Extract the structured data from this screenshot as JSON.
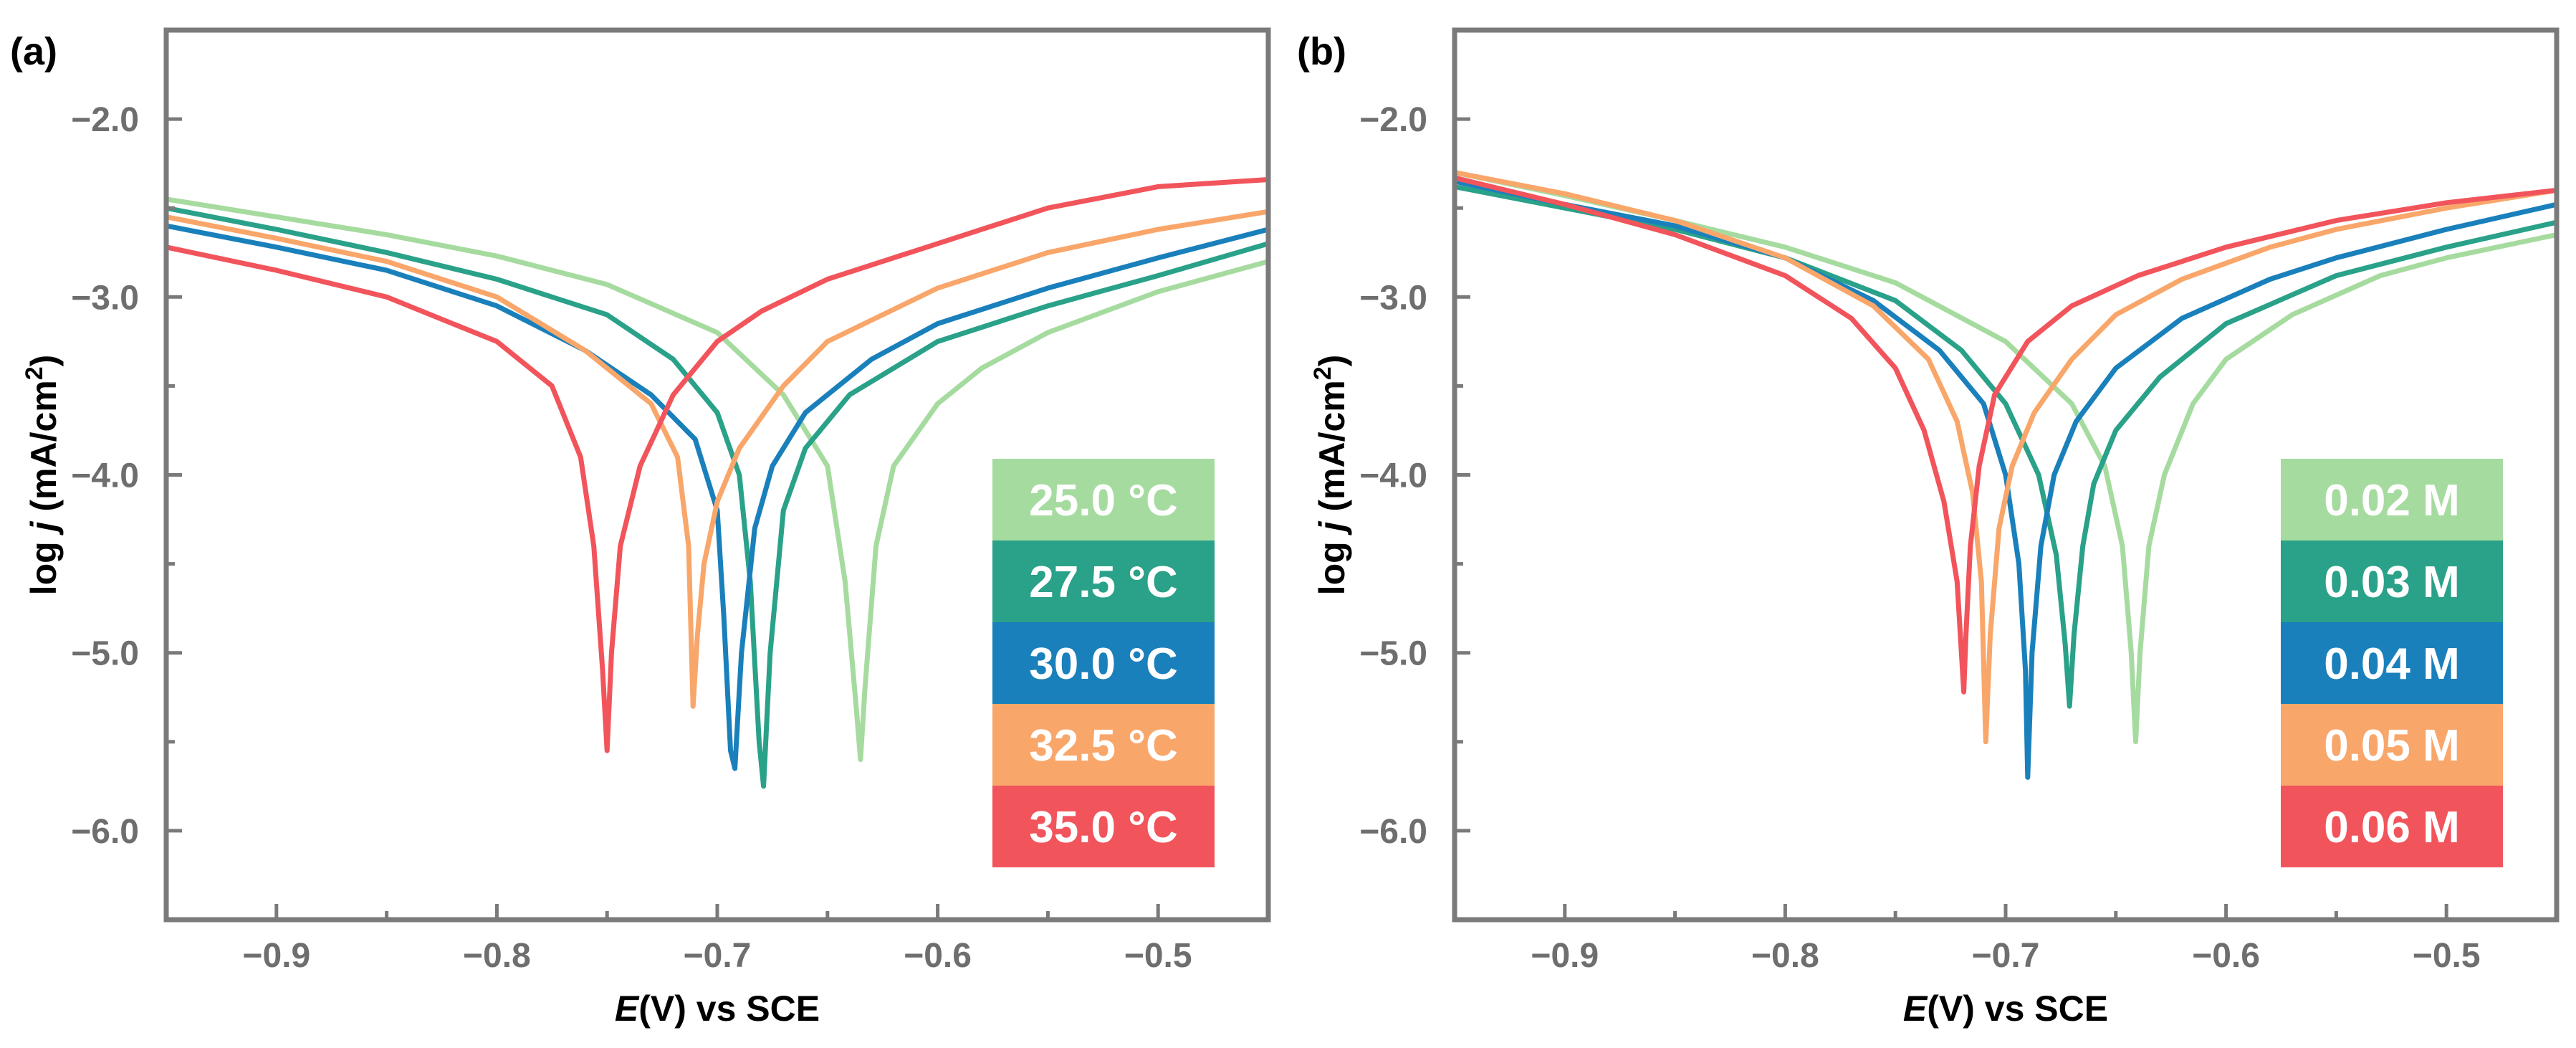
{
  "chart_data": [
    {
      "type": "line",
      "panel_label": "(a)",
      "xlabel": {
        "italic": "E",
        "rest": "(V) vs SCE"
      },
      "ylabel": {
        "prefix": "log ",
        "italic": "j",
        "rest": " (mA/cm",
        "sup": "2",
        "end": ")"
      },
      "xlim": [
        -0.95,
        -0.45
      ],
      "ylim": [
        -6.5,
        -1.5
      ],
      "xticks": [
        {
          "v": -0.9,
          "label": "−0.9"
        },
        {
          "v": -0.8,
          "label": "−0.8"
        },
        {
          "v": -0.7,
          "label": "−0.7"
        },
        {
          "v": -0.6,
          "label": "−0.6"
        },
        {
          "v": -0.5,
          "label": "−0.5"
        }
      ],
      "yticks": [
        {
          "v": -2.0,
          "label": "−2.0"
        },
        {
          "v": -3.0,
          "label": "−3.0"
        },
        {
          "v": -4.0,
          "label": "−4.0"
        },
        {
          "v": -5.0,
          "label": "−5.0"
        },
        {
          "v": -6.0,
          "label": "−6.0"
        }
      ],
      "legend_position": "bottom-right",
      "series": [
        {
          "name": "25.0 °C",
          "color": "#a6dba0",
          "x": [
            -0.95,
            -0.9,
            -0.85,
            -0.8,
            -0.75,
            -0.7,
            -0.67,
            -0.65,
            -0.642,
            -0.637,
            -0.635,
            -0.633,
            -0.628,
            -0.62,
            -0.6,
            -0.58,
            -0.55,
            -0.5,
            -0.45
          ],
          "y": [
            -2.45,
            -2.55,
            -2.65,
            -2.77,
            -2.93,
            -3.2,
            -3.55,
            -3.95,
            -4.6,
            -5.3,
            -5.6,
            -5.2,
            -4.4,
            -3.95,
            -3.6,
            -3.4,
            -3.2,
            -2.97,
            -2.8
          ]
        },
        {
          "name": "27.5 °C",
          "color": "#2aa189",
          "x": [
            -0.95,
            -0.9,
            -0.85,
            -0.8,
            -0.75,
            -0.72,
            -0.7,
            -0.69,
            -0.685,
            -0.681,
            -0.679,
            -0.676,
            -0.67,
            -0.66,
            -0.64,
            -0.6,
            -0.55,
            -0.5,
            -0.45
          ],
          "y": [
            -2.5,
            -2.62,
            -2.75,
            -2.9,
            -3.1,
            -3.35,
            -3.65,
            -4.0,
            -4.6,
            -5.5,
            -5.75,
            -5.0,
            -4.2,
            -3.85,
            -3.55,
            -3.25,
            -3.05,
            -2.88,
            -2.7
          ]
        },
        {
          "name": "30.0 °C",
          "color": "#1a80bb",
          "x": [
            -0.95,
            -0.9,
            -0.85,
            -0.8,
            -0.76,
            -0.73,
            -0.71,
            -0.7,
            -0.697,
            -0.694,
            -0.692,
            -0.689,
            -0.683,
            -0.675,
            -0.66,
            -0.63,
            -0.6,
            -0.55,
            -0.5,
            -0.45
          ],
          "y": [
            -2.6,
            -2.72,
            -2.85,
            -3.05,
            -3.3,
            -3.55,
            -3.8,
            -4.2,
            -4.8,
            -5.55,
            -5.65,
            -5.0,
            -4.3,
            -3.95,
            -3.65,
            -3.35,
            -3.15,
            -2.95,
            -2.78,
            -2.62
          ]
        },
        {
          "name": "32.5 °C",
          "color": "#f9a66a",
          "x": [
            -0.95,
            -0.9,
            -0.85,
            -0.8,
            -0.76,
            -0.73,
            -0.718,
            -0.713,
            -0.711,
            -0.709,
            -0.706,
            -0.7,
            -0.69,
            -0.67,
            -0.65,
            -0.6,
            -0.55,
            -0.5,
            -0.45
          ],
          "y": [
            -2.55,
            -2.67,
            -2.8,
            -3.0,
            -3.3,
            -3.6,
            -3.9,
            -4.4,
            -5.3,
            -4.9,
            -4.5,
            -4.15,
            -3.85,
            -3.5,
            -3.25,
            -2.95,
            -2.75,
            -2.62,
            -2.52
          ]
        },
        {
          "name": "35.0 °C",
          "color": "#f2545b",
          "x": [
            -0.95,
            -0.9,
            -0.85,
            -0.8,
            -0.775,
            -0.762,
            -0.756,
            -0.752,
            -0.75,
            -0.748,
            -0.744,
            -0.735,
            -0.72,
            -0.7,
            -0.68,
            -0.65,
            -0.6,
            -0.55,
            -0.5,
            -0.45
          ],
          "y": [
            -2.72,
            -2.85,
            -3.0,
            -3.25,
            -3.5,
            -3.9,
            -4.4,
            -5.1,
            -5.55,
            -5.0,
            -4.4,
            -3.95,
            -3.55,
            -3.25,
            -3.08,
            -2.9,
            -2.7,
            -2.5,
            -2.38,
            -2.34
          ]
        }
      ]
    },
    {
      "type": "line",
      "panel_label": "(b)",
      "xlabel": {
        "italic": "E",
        "rest": "(V) vs SCE"
      },
      "ylabel": {
        "prefix": "log ",
        "italic": "j",
        "rest": " (mA/cm",
        "sup": "2",
        "end": ")"
      },
      "xlim": [
        -0.95,
        -0.45
      ],
      "ylim": [
        -6.5,
        -1.5
      ],
      "xticks": [
        {
          "v": -0.9,
          "label": "−0.9"
        },
        {
          "v": -0.8,
          "label": "−0.8"
        },
        {
          "v": -0.7,
          "label": "−0.7"
        },
        {
          "v": -0.6,
          "label": "−0.6"
        },
        {
          "v": -0.5,
          "label": "−0.5"
        }
      ],
      "yticks": [
        {
          "v": -2.0,
          "label": "−2.0"
        },
        {
          "v": -3.0,
          "label": "−3.0"
        },
        {
          "v": -4.0,
          "label": "−4.0"
        },
        {
          "v": -5.0,
          "label": "−5.0"
        },
        {
          "v": -6.0,
          "label": "−6.0"
        }
      ],
      "legend_position": "bottom-right",
      "series": [
        {
          "name": "0.02 M",
          "color": "#a6dba0",
          "x": [
            -0.95,
            -0.9,
            -0.85,
            -0.8,
            -0.75,
            -0.7,
            -0.67,
            -0.655,
            -0.647,
            -0.643,
            -0.641,
            -0.639,
            -0.635,
            -0.628,
            -0.615,
            -0.6,
            -0.57,
            -0.53,
            -0.5,
            -0.45
          ],
          "y": [
            -2.3,
            -2.43,
            -2.57,
            -2.72,
            -2.92,
            -3.25,
            -3.6,
            -3.95,
            -4.4,
            -5.0,
            -5.5,
            -5.0,
            -4.4,
            -4.0,
            -3.6,
            -3.35,
            -3.1,
            -2.88,
            -2.78,
            -2.65
          ]
        },
        {
          "name": "0.03 M",
          "color": "#2aa189",
          "x": [
            -0.95,
            -0.9,
            -0.85,
            -0.8,
            -0.75,
            -0.72,
            -0.7,
            -0.685,
            -0.677,
            -0.673,
            -0.671,
            -0.669,
            -0.665,
            -0.66,
            -0.65,
            -0.63,
            -0.6,
            -0.55,
            -0.5,
            -0.45
          ],
          "y": [
            -2.38,
            -2.5,
            -2.62,
            -2.78,
            -3.02,
            -3.3,
            -3.6,
            -4.0,
            -4.45,
            -4.95,
            -5.3,
            -4.9,
            -4.4,
            -4.05,
            -3.75,
            -3.45,
            -3.15,
            -2.88,
            -2.72,
            -2.58
          ]
        },
        {
          "name": "0.04 M",
          "color": "#1a80bb",
          "x": [
            -0.95,
            -0.9,
            -0.85,
            -0.8,
            -0.76,
            -0.73,
            -0.71,
            -0.7,
            -0.694,
            -0.691,
            -0.69,
            -0.688,
            -0.684,
            -0.678,
            -0.668,
            -0.65,
            -0.62,
            -0.58,
            -0.55,
            -0.5,
            -0.45
          ],
          "y": [
            -2.35,
            -2.48,
            -2.6,
            -2.78,
            -3.02,
            -3.3,
            -3.6,
            -4.0,
            -4.5,
            -5.1,
            -5.7,
            -5.0,
            -4.4,
            -4.0,
            -3.7,
            -3.4,
            -3.12,
            -2.9,
            -2.78,
            -2.62,
            -2.48
          ]
        },
        {
          "name": "0.05 M",
          "color": "#f9a66a",
          "x": [
            -0.95,
            -0.9,
            -0.85,
            -0.8,
            -0.76,
            -0.735,
            -0.722,
            -0.715,
            -0.711,
            -0.709,
            -0.707,
            -0.703,
            -0.697,
            -0.687,
            -0.67,
            -0.65,
            -0.62,
            -0.58,
            -0.55,
            -0.5,
            -0.45
          ],
          "y": [
            -2.3,
            -2.42,
            -2.57,
            -2.78,
            -3.05,
            -3.35,
            -3.7,
            -4.1,
            -4.6,
            -5.5,
            -4.9,
            -4.3,
            -3.95,
            -3.65,
            -3.35,
            -3.1,
            -2.9,
            -2.72,
            -2.62,
            -2.5,
            -2.4
          ]
        },
        {
          "name": "0.06 M",
          "color": "#f2545b",
          "x": [
            -0.95,
            -0.9,
            -0.85,
            -0.8,
            -0.77,
            -0.75,
            -0.737,
            -0.728,
            -0.722,
            -0.719,
            -0.718,
            -0.716,
            -0.712,
            -0.705,
            -0.69,
            -0.67,
            -0.64,
            -0.6,
            -0.55,
            -0.5,
            -0.45
          ],
          "y": [
            -2.33,
            -2.48,
            -2.65,
            -2.88,
            -3.12,
            -3.4,
            -3.75,
            -4.15,
            -4.6,
            -5.22,
            -4.9,
            -4.4,
            -3.95,
            -3.55,
            -3.25,
            -3.05,
            -2.88,
            -2.72,
            -2.57,
            -2.47,
            -2.4
          ]
        }
      ]
    }
  ]
}
